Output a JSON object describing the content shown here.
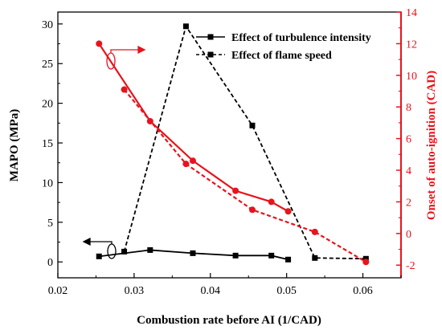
{
  "chart_data": {
    "type": "line",
    "xlabel": "Combustion rate before AI (1/CAD)",
    "ylabel_left": "MAPO (MPa)",
    "ylabel_right": "Onset of auto-ignition (CAD)",
    "xlim": [
      0.02,
      0.065
    ],
    "ylim_left": [
      -2.0,
      31.5
    ],
    "ylim_right": [
      -2.8,
      14
    ],
    "x_ticks": [
      "0.02",
      "0.03",
      "0.04",
      "0.05",
      "0.06"
    ],
    "x_tick_values": [
      0.02,
      0.03,
      0.04,
      0.05,
      0.06
    ],
    "y_left_ticks": [
      "0",
      "5",
      "10",
      "15",
      "20",
      "25",
      "30"
    ],
    "y_left_tick_values": [
      0,
      5,
      10,
      15,
      20,
      25,
      30
    ],
    "y_right_ticks": [
      "-2",
      "0",
      "2",
      "4",
      "6",
      "8",
      "10",
      "12",
      "14"
    ],
    "y_right_tick_values": [
      -2,
      0,
      2,
      4,
      6,
      8,
      10,
      12,
      14
    ],
    "colors": {
      "black": "#000000",
      "red": "#e8131c"
    },
    "legend": [
      "Effect of turbulence intensity",
      "Effect of flame speed"
    ],
    "series": [
      {
        "name": "Effect of turbulence intensity",
        "axis": "left",
        "color": "#000000",
        "line": "solid",
        "marker": "square",
        "x": [
          0.0254,
          0.0321,
          0.0377,
          0.0433,
          0.048,
          0.0502
        ],
        "y": [
          0.7,
          1.5,
          1.1,
          0.8,
          0.8,
          0.3
        ]
      },
      {
        "name": "Effect of flame speed",
        "axis": "left",
        "color": "#000000",
        "line": "dashed",
        "marker": "square",
        "x": [
          0.0287,
          0.0368,
          0.0455,
          0.0537,
          0.0604
        ],
        "y": [
          1.3,
          29.7,
          17.2,
          0.5,
          0.4
        ]
      },
      {
        "axis": "right",
        "color": "#e8131c",
        "line": "solid",
        "marker": "circle",
        "x": [
          0.0254,
          0.0321,
          0.0377,
          0.0433,
          0.048,
          0.0502
        ],
        "y": [
          12.0,
          7.1,
          4.6,
          2.7,
          2.0,
          1.4
        ]
      },
      {
        "axis": "right",
        "color": "#e8131c",
        "line": "dashed",
        "marker": "circle",
        "x": [
          0.0287,
          0.0368,
          0.0455,
          0.0537,
          0.0604
        ],
        "y": [
          9.1,
          4.4,
          1.5,
          0.1,
          -1.8
        ]
      }
    ]
  }
}
